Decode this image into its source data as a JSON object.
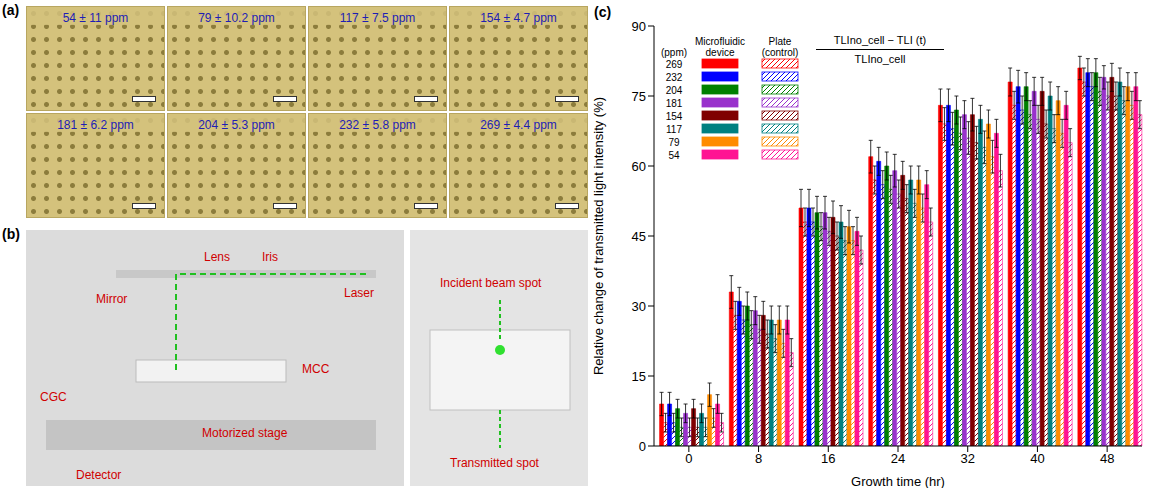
{
  "panel_a": {
    "letter": "(a)",
    "labels": [
      "54 ± 11 ppm",
      "79 ± 10.2 ppm",
      "117 ± 7.5 ppm",
      "154 ± 4.7 ppm",
      "181 ± 6.2 ppm",
      "204 ± 5.3 ppm",
      "232 ± 5.8 ppm",
      "269 ± 4.4 ppm"
    ]
  },
  "panel_b": {
    "letter": "(b)",
    "labels": [
      "Lens",
      "Iris",
      "Mirror",
      "Laser",
      "MCC",
      "CGC",
      "Motorized stage",
      "Detector"
    ],
    "inset_labels": [
      "Incident beam spot",
      "Transmitted spot"
    ]
  },
  "panel_c": {
    "letter": "(c)"
  },
  "chart_data": {
    "type": "bar",
    "x_label": "Growth time (hr)",
    "y_label": "Relative change of transmitted light intensity (%)",
    "annotations": [
      "TLIno_cell − TLI (t)",
      "TLIno_cell"
    ],
    "legend_groups": [
      "Microfluidic device",
      "Plate (control)"
    ],
    "legend_title": "(ppm)",
    "legend": "upper left",
    "categories": [
      0,
      8,
      16,
      24,
      32,
      40,
      48
    ],
    "ylim": [
      0,
      90
    ],
    "yticks": [
      0,
      15,
      30,
      45,
      60,
      75,
      90
    ],
    "series": [
      {
        "name": "269",
        "group": "Microfluidic device",
        "color": "#ff0000",
        "values": [
          9,
          33,
          51,
          62,
          73,
          78,
          81
        ],
        "errors": [
          2.5,
          3.5,
          4,
          3.5,
          3.5,
          3,
          2.5
        ]
      },
      {
        "name": "269",
        "group": "Plate (control)",
        "color": "#ff0000",
        "values": [
          5,
          28,
          48,
          57,
          69,
          73,
          78
        ],
        "errors": [
          2,
          3,
          3,
          3,
          3.5,
          3,
          3
        ]
      },
      {
        "name": "232",
        "group": "Microfluidic device",
        "color": "#0000ff",
        "values": [
          9,
          31,
          51,
          61,
          73,
          77,
          80
        ],
        "errors": [
          2.5,
          3,
          4,
          3,
          3.5,
          3.5,
          3
        ]
      },
      {
        "name": "232",
        "group": "Plate (control)",
        "color": "#0000ff",
        "values": [
          5,
          27,
          48,
          56,
          68,
          72,
          77
        ],
        "errors": [
          2,
          3,
          3,
          3,
          3.5,
          3,
          3
        ]
      },
      {
        "name": "204",
        "group": "Microfluidic device",
        "color": "#008000",
        "values": [
          8,
          30,
          50,
          60,
          72,
          77,
          80
        ],
        "errors": [
          2,
          3,
          3.5,
          3,
          3,
          3,
          3
        ]
      },
      {
        "name": "204",
        "group": "Plate (control)",
        "color": "#008000",
        "values": [
          4,
          26,
          47,
          55,
          67,
          71,
          76
        ],
        "errors": [
          2,
          3,
          3,
          3,
          3.5,
          3,
          3
        ]
      },
      {
        "name": "181",
        "group": "Microfluidic device",
        "color": "#9932cc",
        "values": [
          7,
          29,
          50,
          59,
          71,
          76,
          79
        ],
        "errors": [
          2,
          3,
          3.5,
          3.5,
          3,
          3,
          2.5
        ]
      },
      {
        "name": "181",
        "group": "Plate (control)",
        "color": "#9932cc",
        "values": [
          4,
          25,
          46,
          54,
          66,
          70,
          75
        ],
        "errors": [
          2,
          3,
          3,
          3,
          3.5,
          3,
          3
        ]
      },
      {
        "name": "154",
        "group": "Microfluidic device",
        "color": "#800000",
        "values": [
          8,
          28,
          49,
          58,
          71,
          76,
          79
        ],
        "errors": [
          2,
          3,
          3.5,
          3,
          3.5,
          3,
          3
        ]
      },
      {
        "name": "154",
        "group": "Plate (control)",
        "color": "#800000",
        "values": [
          4,
          24,
          45,
          53,
          65,
          69,
          75
        ],
        "errors": [
          2,
          3,
          3,
          3,
          3.5,
          3,
          3
        ]
      },
      {
        "name": "117",
        "group": "Microfluidic device",
        "color": "#008080",
        "values": [
          7,
          27,
          48,
          57,
          70,
          75,
          78
        ],
        "errors": [
          2,
          3,
          3.5,
          3,
          3,
          3,
          3
        ]
      },
      {
        "name": "117",
        "group": "Plate (control)",
        "color": "#008080",
        "values": [
          4,
          23,
          44,
          52,
          64,
          68,
          74
        ],
        "errors": [
          2,
          3,
          3,
          3,
          3.5,
          3,
          3
        ]
      },
      {
        "name": "79",
        "group": "Microfluidic device",
        "color": "#ff8c00",
        "values": [
          11,
          27,
          47,
          57,
          69,
          74,
          77
        ],
        "errors": [
          2.5,
          3,
          3.5,
          3,
          3,
          3,
          3
        ]
      },
      {
        "name": "79",
        "group": "Plate (control)",
        "color": "#ff8c00",
        "values": [
          6,
          22,
          44,
          51,
          62,
          67,
          73
        ],
        "errors": [
          2,
          3,
          3,
          3,
          3.5,
          3,
          3
        ]
      },
      {
        "name": "54",
        "group": "Microfluidic device",
        "color": "#ff1493",
        "values": [
          9,
          27,
          46,
          56,
          67,
          73,
          77
        ],
        "errors": [
          2,
          3,
          3,
          3,
          3,
          3,
          3
        ]
      },
      {
        "name": "54",
        "group": "Plate (control)",
        "color": "#ff1493",
        "values": [
          5,
          20,
          42,
          48,
          59,
          65,
          71
        ],
        "errors": [
          2,
          3,
          3,
          3,
          3.5,
          3,
          3
        ]
      }
    ]
  }
}
